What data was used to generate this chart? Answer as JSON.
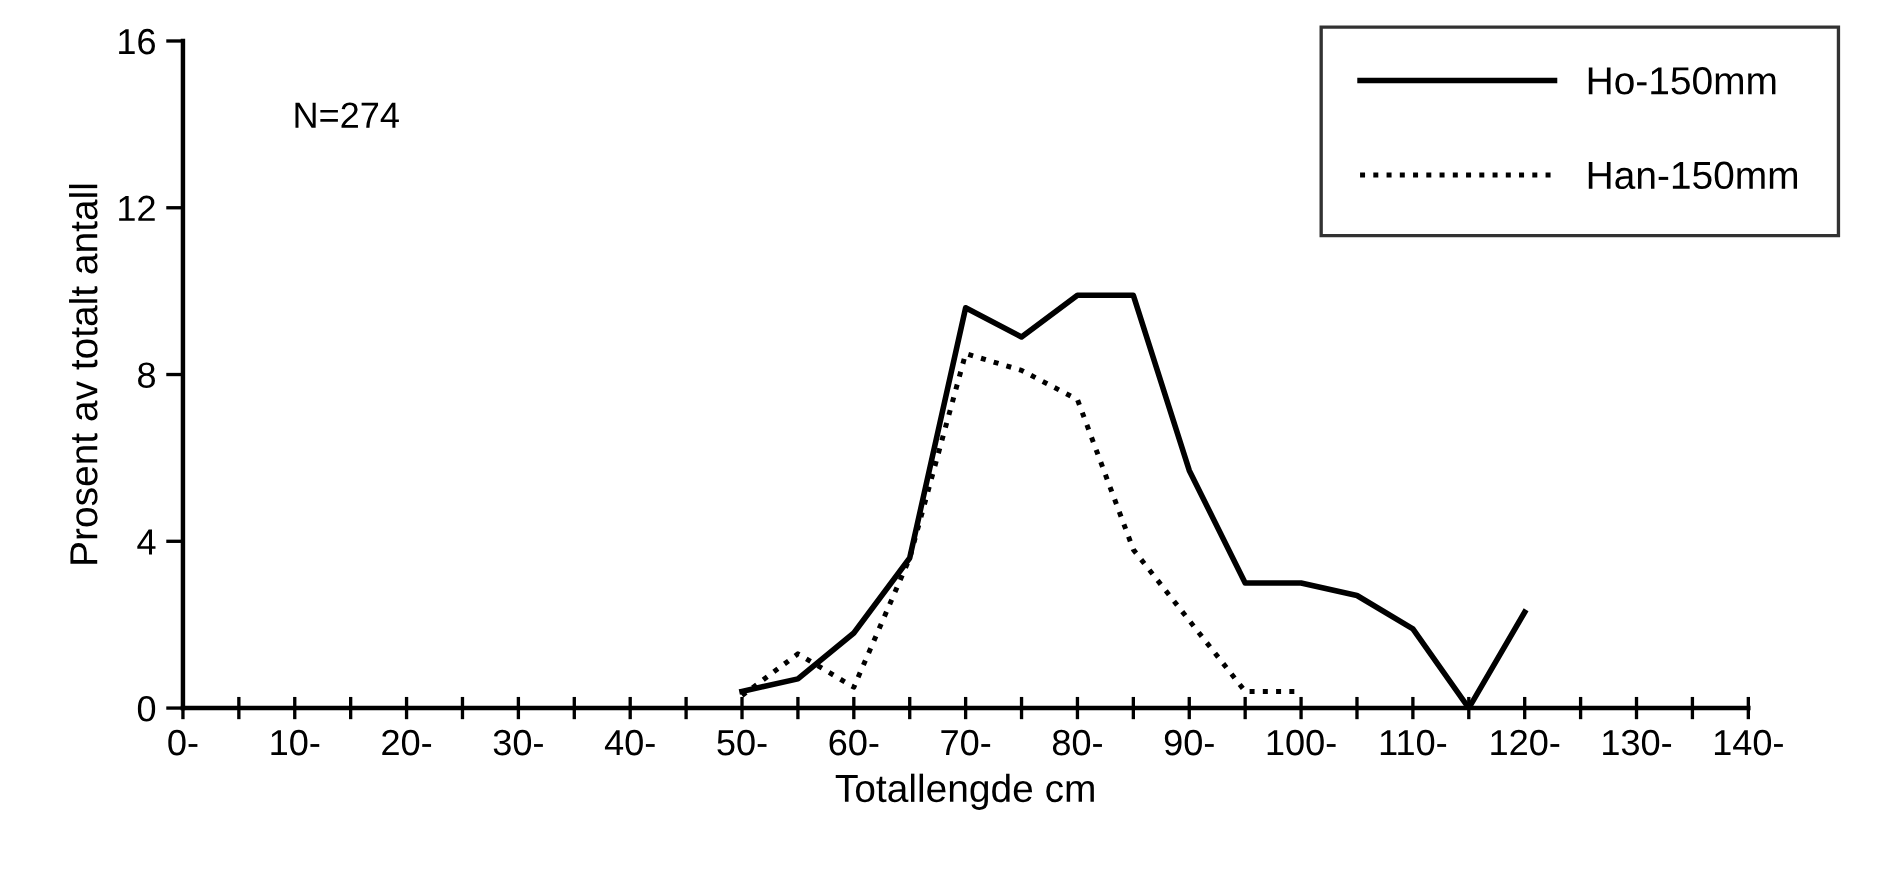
{
  "chart_data": {
    "type": "line",
    "xlabel": "Totallengde cm",
    "ylabel": "Prosent av totalt antall",
    "annotations": [
      "N=274"
    ],
    "series": [
      {
        "name": "Ho-150mm",
        "color": "#000000",
        "line_style": "solid",
        "x": [
          50,
          55,
          60,
          65,
          70,
          75,
          80,
          85,
          90,
          95,
          100,
          105,
          110,
          115,
          120
        ],
        "values": [
          0.4,
          0.7,
          1.8,
          3.6,
          9.6,
          8.9,
          9.9,
          9.9,
          5.7,
          3.0,
          3.0,
          2.7,
          1.9,
          0,
          2.3
        ]
      },
      {
        "name": "Han-150mm",
        "color": "#000000",
        "line_style": "dotted",
        "x": [
          50,
          55,
          60,
          65,
          70,
          75,
          80,
          85,
          90,
          95,
          100
        ],
        "values": [
          0.3,
          1.3,
          0.5,
          3.6,
          8.5,
          8.1,
          7.4,
          3.8,
          2.1,
          0.4,
          0.4
        ]
      }
    ],
    "xlim": [
      0,
      140
    ],
    "xticks": [
      {
        "value": 0,
        "label": "0-"
      },
      {
        "value": 5,
        "label": null
      },
      {
        "value": 10,
        "label": "10-"
      },
      {
        "value": 15,
        "label": null
      },
      {
        "value": 20,
        "label": "20-"
      },
      {
        "value": 25,
        "label": null
      },
      {
        "value": 30,
        "label": "30-"
      },
      {
        "value": 35,
        "label": null
      },
      {
        "value": 40,
        "label": "40-"
      },
      {
        "value": 45,
        "label": null
      },
      {
        "value": 50,
        "label": "50-"
      },
      {
        "value": 55,
        "label": null
      },
      {
        "value": 60,
        "label": "60-"
      },
      {
        "value": 65,
        "label": null
      },
      {
        "value": 70,
        "label": "70-"
      },
      {
        "value": 75,
        "label": null
      },
      {
        "value": 80,
        "label": "80-"
      },
      {
        "value": 85,
        "label": null
      },
      {
        "value": 90,
        "label": "90-"
      },
      {
        "value": 95,
        "label": null
      },
      {
        "value": 100,
        "label": "100-"
      },
      {
        "value": 105,
        "label": null
      },
      {
        "value": 110,
        "label": "110-"
      },
      {
        "value": 115,
        "label": null
      },
      {
        "value": 120,
        "label": "120-"
      },
      {
        "value": 125,
        "label": null
      },
      {
        "value": 130,
        "label": "130-"
      },
      {
        "value": 135,
        "label": null
      },
      {
        "value": 140,
        "label": "140-"
      }
    ],
    "ylim": [
      0,
      16
    ],
    "yticks": [
      0,
      4,
      8,
      12,
      16
    ],
    "grid": false,
    "legend": "top right",
    "marker": "none"
  }
}
